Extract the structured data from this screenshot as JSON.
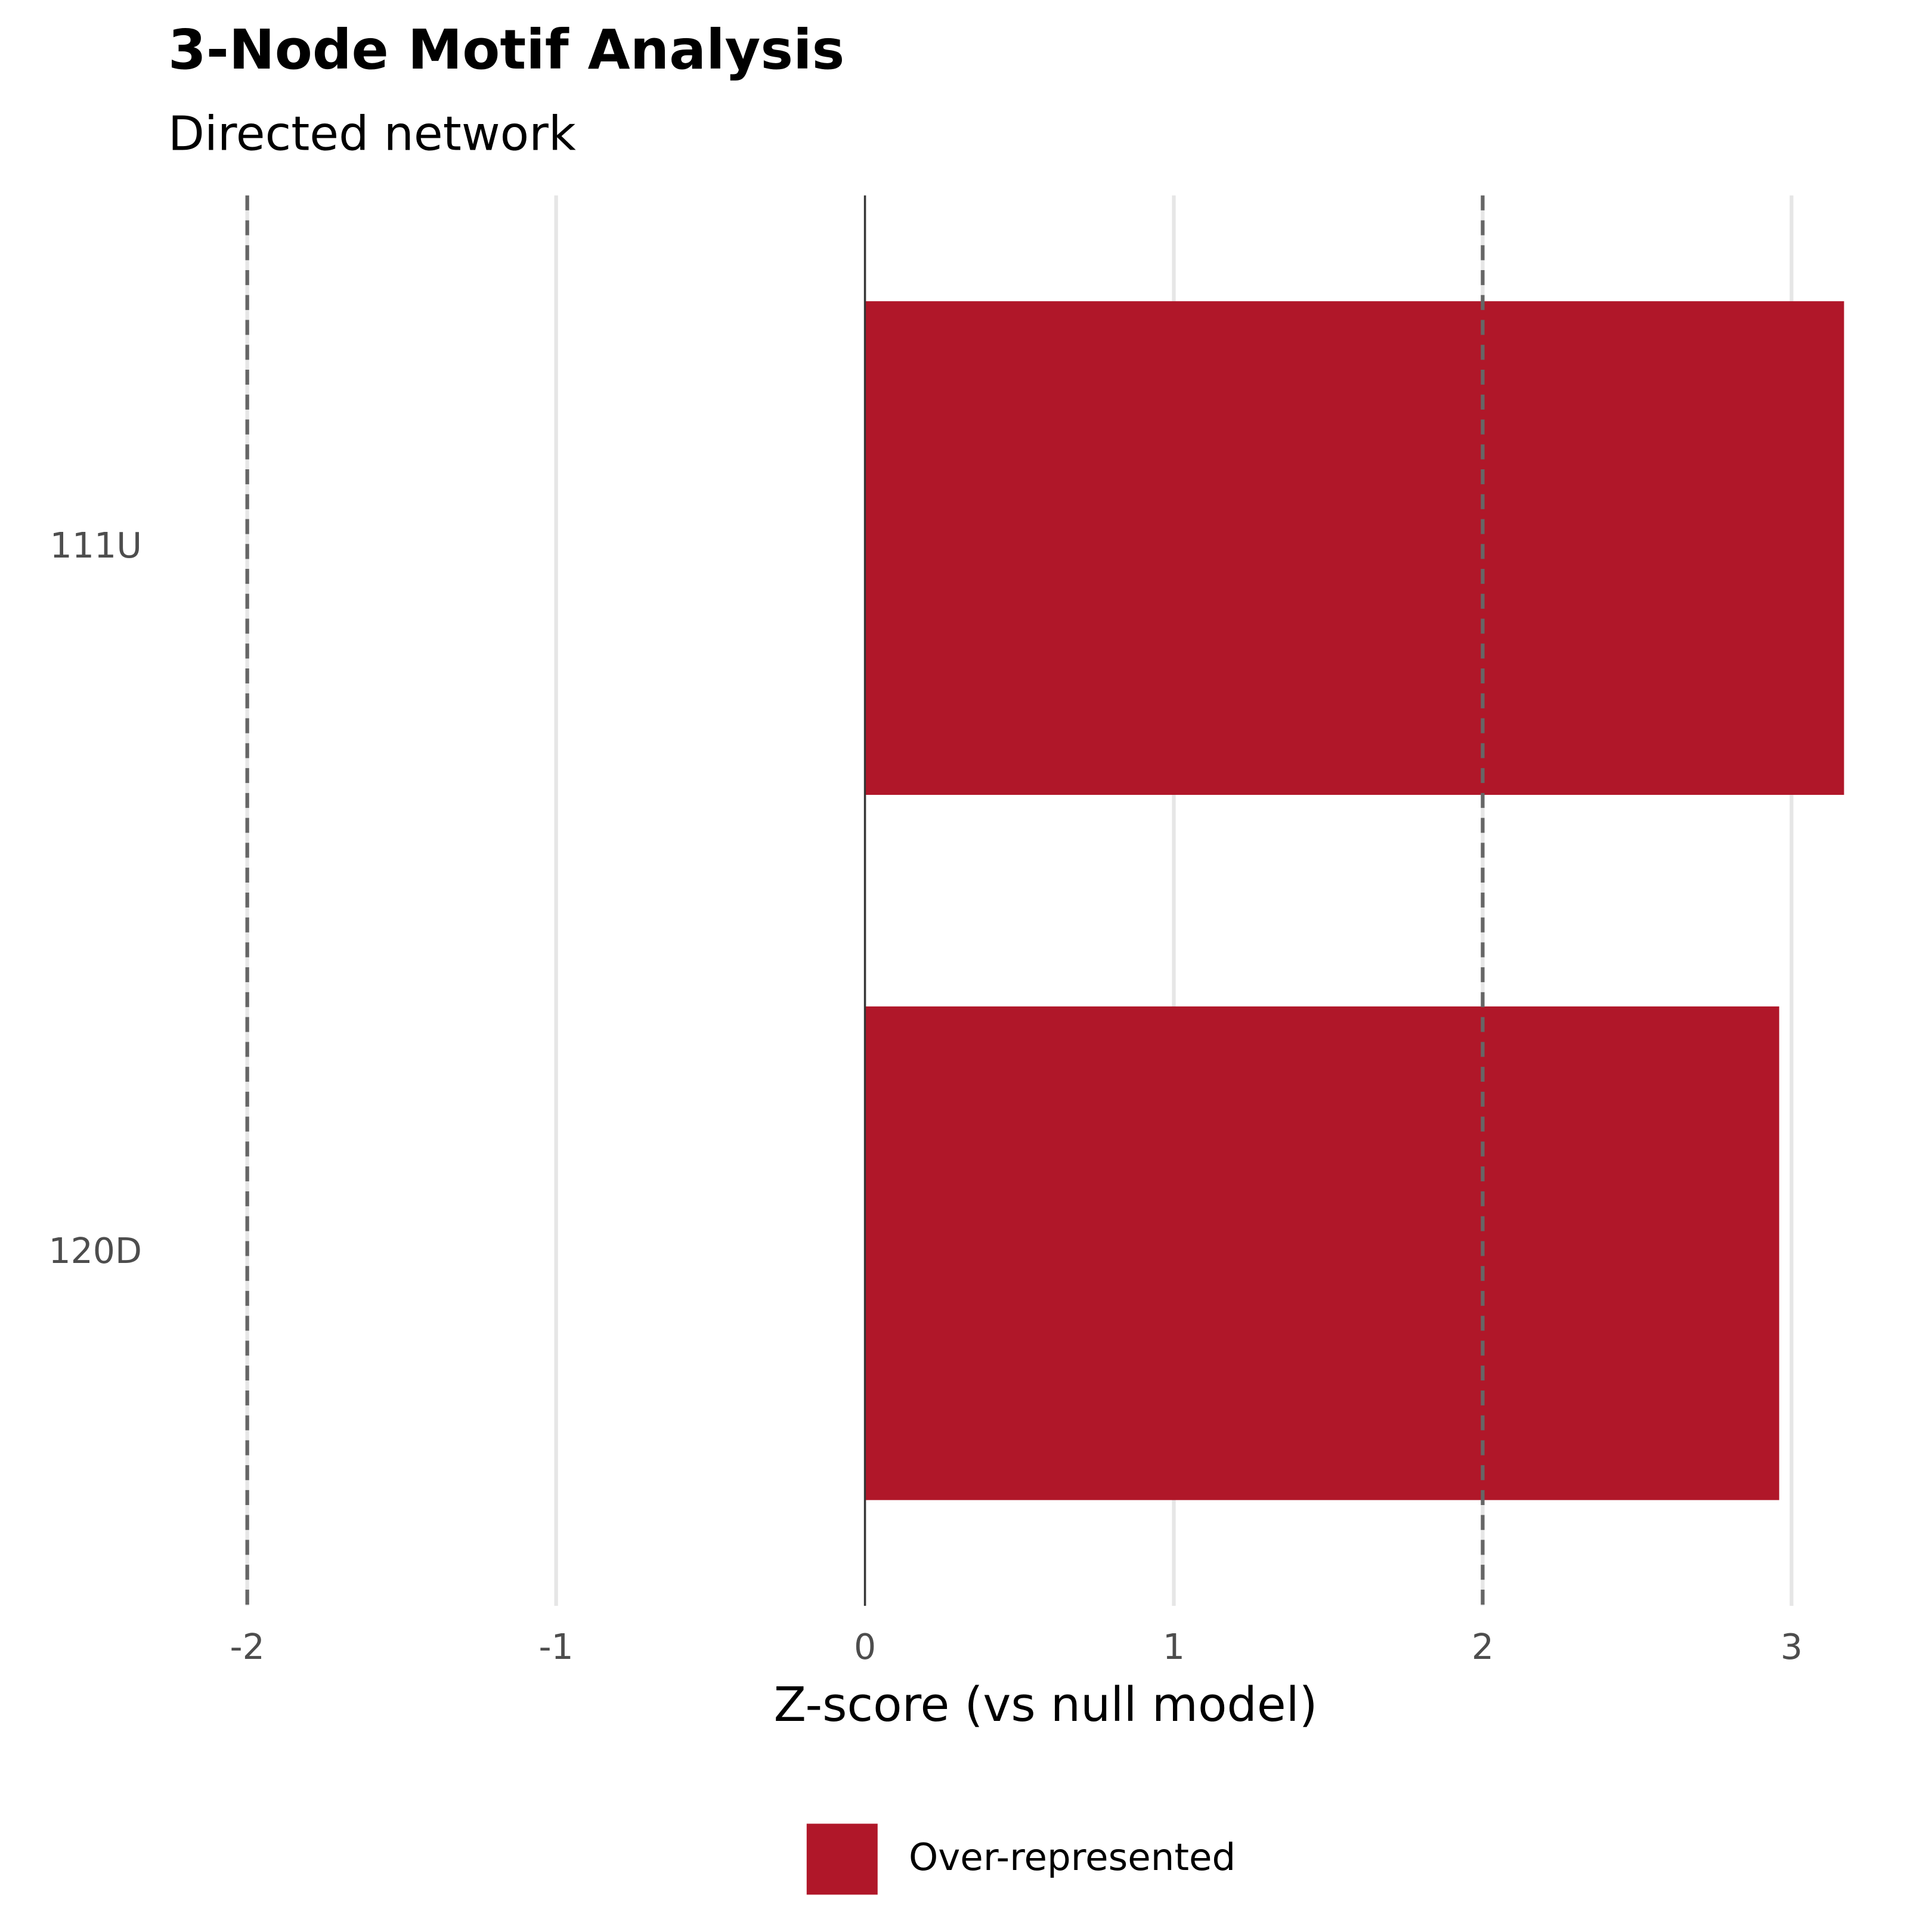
{
  "chart_data": {
    "type": "bar",
    "orientation": "horizontal",
    "title": "3-Node Motif Analysis",
    "subtitle": "Directed network",
    "x_label": "Z-score (vs null model)",
    "categories": [
      "111U",
      "120D"
    ],
    "series": [
      {
        "name": "Over-represented",
        "color": "#b01729",
        "values": [
          3.17,
          2.96
        ]
      }
    ],
    "xlim": [
      -2.2,
      3.35
    ],
    "xticks": [
      -2,
      -1,
      0,
      1,
      2,
      3
    ],
    "thresholds": [
      -2,
      2
    ],
    "grid": true,
    "legend": "bottom"
  }
}
